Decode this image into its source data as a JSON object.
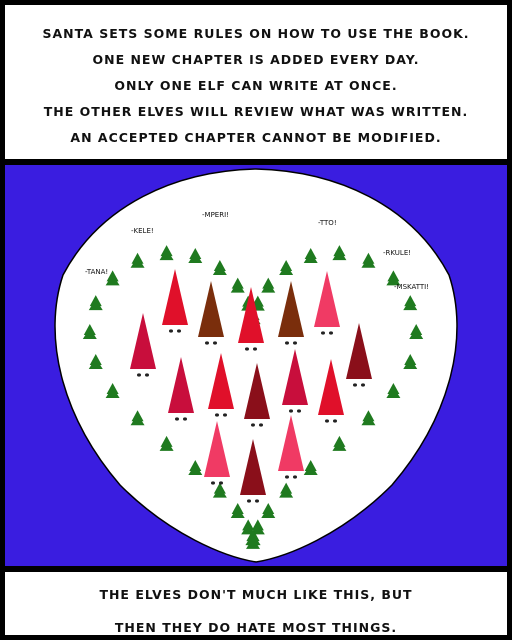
{
  "top_caption": {
    "lines": [
      "SANTA SETS SOME RULES ON HOW TO USE THE BOOK.",
      "ONE NEW CHAPTER IS ADDED EVERY DAY.",
      "ONLY ONE ELF CAN WRITE AT ONCE.",
      "THE OTHER ELVES WILL REVIEW WHAT WAS WRITTEN.",
      "AN ACCEPTED CHAPTER CANNOT BE MODIFIED."
    ]
  },
  "chants": [
    "-KELE!",
    "-MPERI!",
    "-TTO!",
    "-RKULE!",
    "-MSKATTI!",
    "-TANA!"
  ],
  "bottom_caption": {
    "lines": [
      "THE ELVES DON'T MUCH LIKE THIS, BUT",
      "THEN THEY DO HATE MOST THINGS."
    ]
  },
  "colors": {
    "background": "#3a1de0",
    "tree": "#1f7a1f",
    "elf_red": "#e0102a",
    "elf_crimson": "#c80e3c",
    "elf_dark": "#8a0f1a",
    "elf_brown": "#7a2e0c",
    "elf_pink": "#f03a64"
  },
  "icons": [
    "pine-tree-icon",
    "elf-hat-icon"
  ]
}
